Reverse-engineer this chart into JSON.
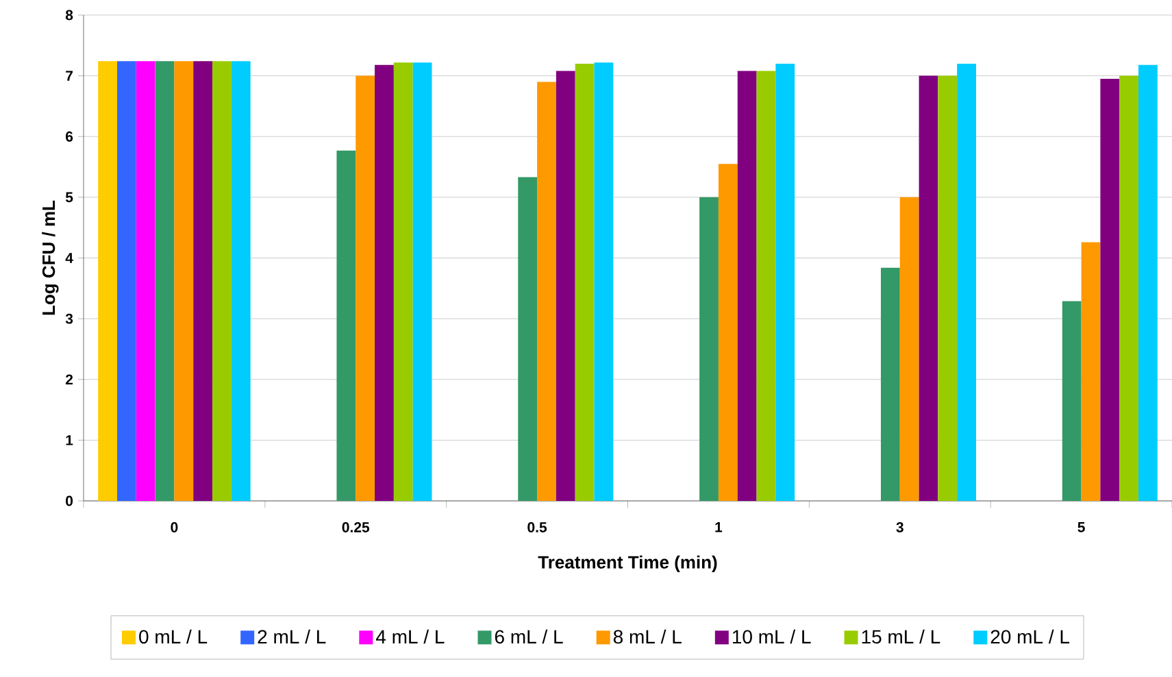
{
  "chart_data": {
    "type": "bar",
    "xlabel": "Treatment Time (min)",
    "ylabel": "Log CFU / mL",
    "categories": [
      "0",
      "0.25",
      "0.5",
      "1",
      "3",
      "5"
    ],
    "ylim": [
      0,
      8
    ],
    "yticks": [
      0,
      1,
      2,
      3,
      4,
      5,
      6,
      7,
      8
    ],
    "grid": "y",
    "legend": "bottom",
    "series": [
      {
        "name": "0 mL / L",
        "color": "#ffcc00",
        "values": [
          7.24,
          null,
          null,
          null,
          null,
          null
        ]
      },
      {
        "name": "2 mL / L",
        "color": "#3366ff",
        "values": [
          7.24,
          null,
          null,
          null,
          null,
          null
        ]
      },
      {
        "name": "4 mL / L",
        "color": "#ff00ff",
        "values": [
          7.24,
          null,
          null,
          null,
          null,
          null
        ]
      },
      {
        "name": "6 mL / L",
        "color": "#339966",
        "values": [
          7.24,
          5.77,
          5.33,
          5.0,
          3.84,
          3.29
        ]
      },
      {
        "name": "8 mL / L",
        "color": "#ff9900",
        "values": [
          7.24,
          7.0,
          6.9,
          5.55,
          5.0,
          4.26
        ]
      },
      {
        "name": "10 mL / L",
        "color": "#800080",
        "values": [
          7.24,
          7.18,
          7.08,
          7.08,
          7.0,
          6.95
        ]
      },
      {
        "name": "15 mL / L",
        "color": "#99cc00",
        "values": [
          7.24,
          7.22,
          7.2,
          7.08,
          7.0,
          7.0
        ]
      },
      {
        "name": "20 mL / L",
        "color": "#00ccff",
        "values": [
          7.24,
          7.22,
          7.22,
          7.2,
          7.2,
          7.18
        ]
      }
    ]
  }
}
